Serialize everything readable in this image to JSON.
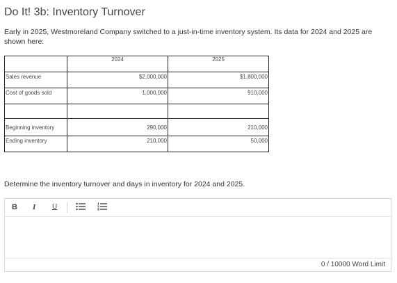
{
  "title": "Do It! 3b: Inventory Turnover",
  "intro": "Early in 2025, Westmoreland Company switched to a just-in-time inventory system. Its data for 2024 and 2025 are shown here:",
  "table": {
    "headers": [
      "",
      "2024",
      "2025"
    ],
    "rows": [
      {
        "label": "Sales revenue",
        "y2024": "$2,000,000",
        "y2025": "$1,800,000"
      },
      {
        "label": "Cost of goods sold",
        "y2024": "1,000,000",
        "y2025": "910,000"
      },
      {
        "label": "Beginning inventory",
        "y2024": "290,000",
        "y2025": "210,000"
      },
      {
        "label": "Ending inventory",
        "y2024": "210,000",
        "y2025": "50,000"
      }
    ]
  },
  "question": "Determine the inventory turnover and days in inventory for 2024 and 2025.",
  "editor": {
    "toolbar": {
      "bold": "B",
      "italic": "I",
      "underline": "U",
      "bullet_list_icon": "bullet-list-icon",
      "numbered_list_icon": "numbered-list-icon"
    },
    "value": "",
    "word_limit": "0 / 10000 Word Limit"
  }
}
